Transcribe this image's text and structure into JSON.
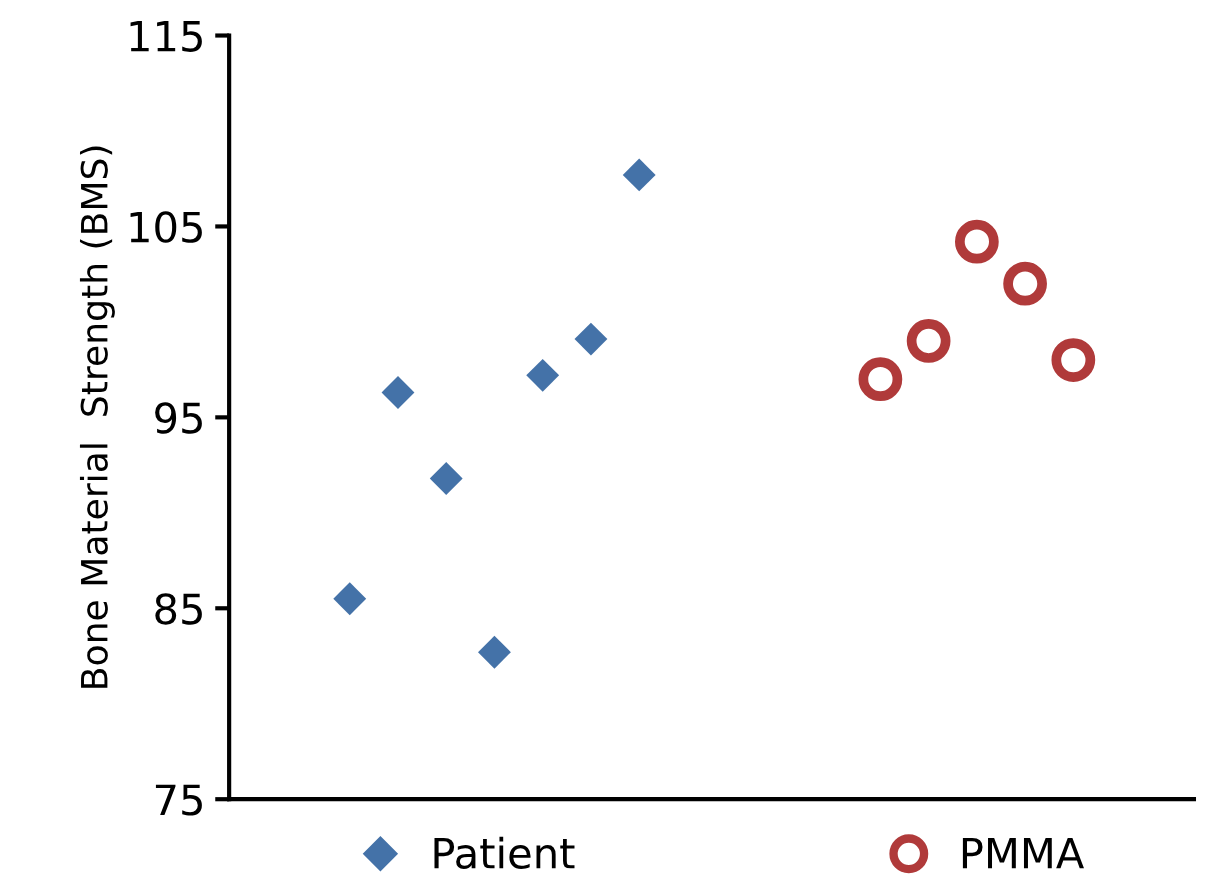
{
  "chart_data": {
    "type": "scatter",
    "ylabel": "Bone Material  Strength (BMS)",
    "categories": [
      null,
      null,
      null,
      null,
      null,
      null,
      null,
      null,
      null,
      null,
      null,
      null,
      null,
      null,
      null,
      null,
      null,
      null,
      null,
      null
    ],
    "series": [
      {
        "name": "Patient",
        "color": "#4472a8",
        "marker": "diamond",
        "values": [
          null,
          null,
          85.5,
          96.3,
          91.8,
          82.7,
          97.2,
          99.1,
          107.7,
          null,
          null,
          null,
          null,
          null,
          null,
          null,
          null,
          null,
          null,
          null
        ]
      },
      {
        "name": "PMMA",
        "color": "#b03a3a",
        "marker": "circle",
        "values": [
          null,
          null,
          null,
          null,
          null,
          null,
          null,
          null,
          null,
          null,
          null,
          null,
          null,
          97.0,
          99.0,
          104.2,
          102.0,
          98.0,
          null,
          null
        ]
      }
    ],
    "ylim": [
      75,
      115
    ],
    "yticks": [
      75,
      85,
      95,
      105,
      115
    ],
    "grid": false,
    "legend": "bottom"
  }
}
